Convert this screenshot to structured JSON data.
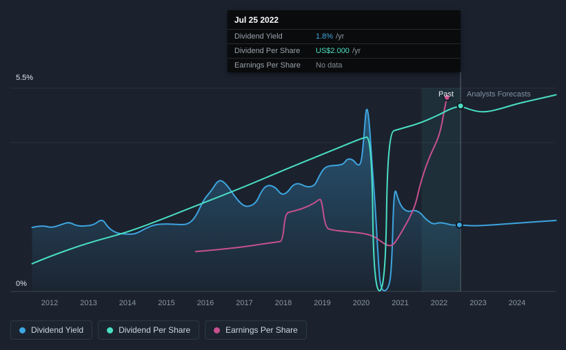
{
  "axis": {
    "y_top": "5.5%",
    "y_bottom": "0%"
  },
  "annotations": {
    "past": "Past",
    "forecasts": "Analysts Forecasts"
  },
  "tooltip": {
    "date": "Jul 25 2022",
    "rows": [
      {
        "label": "Dividend Yield",
        "value": "1.8%",
        "suffix": "/yr",
        "color": "#3da5e0"
      },
      {
        "label": "Dividend Per Share",
        "value": "US$2.000",
        "suffix": "/yr",
        "color": "#4ae0c4"
      },
      {
        "label": "Earnings Per Share",
        "value": "No data",
        "suffix": "",
        "color": "#848d96"
      }
    ]
  },
  "legend": [
    {
      "label": "Dividend Yield",
      "color": "#3da5e0"
    },
    {
      "label": "Dividend Per Share",
      "color": "#4ae0c4"
    },
    {
      "label": "Earnings Per Share",
      "color": "#c7518f"
    }
  ],
  "chart_data": {
    "type": "line",
    "y_unit": "%",
    "ylim": [
      0,
      5.5
    ],
    "xlim": [
      2011.45,
      2025.05
    ],
    "x_ticks": [
      "2012",
      "2013",
      "2014",
      "2015",
      "2016",
      "2017",
      "2018",
      "2019",
      "2020",
      "2021",
      "2022",
      "2023",
      "2024"
    ],
    "gridlines_pct": [
      5.5,
      4.03,
      0
    ],
    "divider_year": 2022.55,
    "highlight_band": {
      "start_year": 2021.55,
      "end_year": 2022.55
    },
    "legend_position": "bottom-left",
    "series": [
      {
        "name": "Dividend Yield",
        "color": "#3da5e0",
        "area_fill": true,
        "points": [
          [
            2011.55,
            1.73
          ],
          [
            2011.8,
            1.79
          ],
          [
            2012.05,
            1.72
          ],
          [
            2012.3,
            1.81
          ],
          [
            2012.5,
            1.88
          ],
          [
            2012.7,
            1.77
          ],
          [
            2012.95,
            1.77
          ],
          [
            2013.15,
            1.81
          ],
          [
            2013.35,
            1.97
          ],
          [
            2013.5,
            1.73
          ],
          [
            2013.7,
            1.58
          ],
          [
            2013.95,
            1.55
          ],
          [
            2014.2,
            1.55
          ],
          [
            2014.45,
            1.7
          ],
          [
            2014.7,
            1.81
          ],
          [
            2015.0,
            1.83
          ],
          [
            2015.3,
            1.81
          ],
          [
            2015.55,
            1.81
          ],
          [
            2015.75,
            2.01
          ],
          [
            2015.95,
            2.48
          ],
          [
            2016.15,
            2.72
          ],
          [
            2016.35,
            3.05
          ],
          [
            2016.55,
            2.89
          ],
          [
            2016.75,
            2.57
          ],
          [
            2016.95,
            2.33
          ],
          [
            2017.1,
            2.29
          ],
          [
            2017.3,
            2.39
          ],
          [
            2017.45,
            2.74
          ],
          [
            2017.6,
            2.89
          ],
          [
            2017.8,
            2.82
          ],
          [
            2017.95,
            2.61
          ],
          [
            2018.1,
            2.67
          ],
          [
            2018.25,
            2.89
          ],
          [
            2018.4,
            2.93
          ],
          [
            2018.6,
            2.82
          ],
          [
            2018.8,
            2.85
          ],
          [
            2018.9,
            3.08
          ],
          [
            2019.05,
            3.36
          ],
          [
            2019.25,
            3.41
          ],
          [
            2019.4,
            3.41
          ],
          [
            2019.55,
            3.45
          ],
          [
            2019.65,
            3.6
          ],
          [
            2019.8,
            3.56
          ],
          [
            2019.9,
            3.41
          ],
          [
            2020.0,
            3.45
          ],
          [
            2020.07,
            4.2
          ],
          [
            2020.13,
            5.05
          ],
          [
            2020.2,
            4.7
          ],
          [
            2020.28,
            3.4
          ],
          [
            2020.36,
            2.3
          ],
          [
            2020.44,
            0.8
          ],
          [
            2020.5,
            0.02
          ],
          [
            2020.68,
            0.02
          ],
          [
            2020.78,
            0.5
          ],
          [
            2020.84,
            2.89
          ],
          [
            2020.95,
            2.48
          ],
          [
            2021.05,
            2.26
          ],
          [
            2021.2,
            2.15
          ],
          [
            2021.35,
            2.2
          ],
          [
            2021.5,
            2.15
          ],
          [
            2021.65,
            1.96
          ],
          [
            2021.85,
            1.81
          ],
          [
            2022.0,
            1.87
          ],
          [
            2022.2,
            1.83
          ],
          [
            2022.35,
            1.79
          ],
          [
            2022.52,
            1.8
          ],
          [
            2022.9,
            1.77
          ],
          [
            2023.5,
            1.81
          ],
          [
            2024.0,
            1.85
          ],
          [
            2025.0,
            1.92
          ]
        ]
      },
      {
        "name": "Earnings Per Share",
        "color": "#c7518f",
        "area_fill": false,
        "points": [
          [
            2015.75,
            1.08
          ],
          [
            2016.0,
            1.1
          ],
          [
            2016.4,
            1.14
          ],
          [
            2017.0,
            1.21
          ],
          [
            2017.5,
            1.29
          ],
          [
            2017.85,
            1.34
          ],
          [
            2017.98,
            1.36
          ],
          [
            2018.05,
            2.11
          ],
          [
            2018.2,
            2.16
          ],
          [
            2018.5,
            2.24
          ],
          [
            2018.8,
            2.39
          ],
          [
            2018.9,
            2.48
          ],
          [
            2018.98,
            2.5
          ],
          [
            2019.08,
            1.72
          ],
          [
            2019.25,
            1.66
          ],
          [
            2019.6,
            1.62
          ],
          [
            2020.0,
            1.58
          ],
          [
            2020.3,
            1.51
          ],
          [
            2020.5,
            1.36
          ],
          [
            2020.65,
            1.25
          ],
          [
            2020.8,
            1.23
          ],
          [
            2020.95,
            1.45
          ],
          [
            2021.1,
            1.73
          ],
          [
            2021.25,
            2.01
          ],
          [
            2021.4,
            2.37
          ],
          [
            2021.5,
            2.85
          ],
          [
            2021.65,
            3.36
          ],
          [
            2021.8,
            3.75
          ],
          [
            2021.9,
            3.97
          ],
          [
            2022.0,
            4.23
          ],
          [
            2022.07,
            4.53
          ],
          [
            2022.13,
            4.9
          ],
          [
            2022.2,
            5.25
          ]
        ]
      },
      {
        "name": "Dividend Per Share",
        "color": "#4ae0c4",
        "area_fill": false,
        "points": [
          [
            2011.55,
            0.75
          ],
          [
            2012.0,
            0.95
          ],
          [
            2013.0,
            1.32
          ],
          [
            2014.0,
            1.6
          ],
          [
            2015.0,
            2.0
          ],
          [
            2016.0,
            2.42
          ],
          [
            2017.0,
            2.83
          ],
          [
            2018.0,
            3.28
          ],
          [
            2019.0,
            3.71
          ],
          [
            2019.75,
            4.03
          ],
          [
            2020.0,
            4.14
          ],
          [
            2020.27,
            4.21
          ],
          [
            2020.32,
            0.02
          ],
          [
            2020.62,
            0.02
          ],
          [
            2020.68,
            4.3
          ],
          [
            2021.0,
            4.4
          ],
          [
            2021.5,
            4.55
          ],
          [
            2022.0,
            4.78
          ],
          [
            2022.3,
            4.95
          ],
          [
            2022.55,
            5.02
          ],
          [
            2022.9,
            4.88
          ],
          [
            2023.2,
            4.85
          ],
          [
            2023.6,
            4.95
          ],
          [
            2024.0,
            5.08
          ],
          [
            2024.5,
            5.2
          ],
          [
            2025.0,
            5.32
          ]
        ]
      }
    ],
    "markers": [
      {
        "series": "Dividend Yield",
        "x": 2022.52,
        "y": 1.8
      },
      {
        "series": "Dividend Per Share",
        "x": 2022.55,
        "y": 5.02
      },
      {
        "series": "Earnings Per Share",
        "x": 2022.2,
        "y": 5.25
      }
    ]
  }
}
